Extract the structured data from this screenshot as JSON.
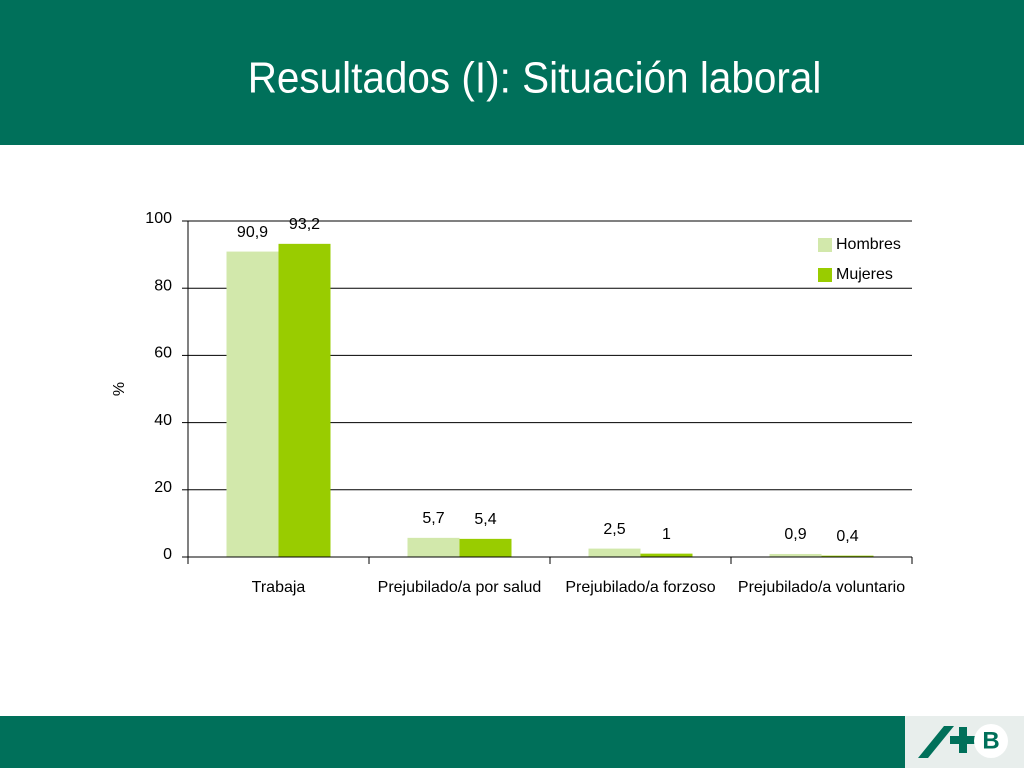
{
  "chart_data": {
    "type": "bar",
    "title": "Resultados (I): Situación laboral",
    "y_label": "%",
    "categories": [
      "Trabaja",
      "Prejubilado/a por salud",
      "Prejubilado/a forzoso",
      "Prejubilado/a voluntario"
    ],
    "series": [
      {
        "name": "Hombres",
        "color": "#d2e8ab",
        "values": [
          90.9,
          5.7,
          2.5,
          0.9
        ],
        "value_labels": [
          "90,9",
          "5,7",
          "2,5",
          "0,9"
        ]
      },
      {
        "name": "Mujeres",
        "color": "#99cc00",
        "values": [
          93.2,
          5.4,
          1,
          0.4
        ],
        "value_labels": [
          "93,2",
          "5,4",
          "1",
          "0,4"
        ]
      }
    ],
    "ylim": [
      0,
      100
    ],
    "yticks": [
      0,
      20,
      40,
      60,
      80,
      100
    ],
    "grid": true,
    "legend": "top-right"
  }
}
